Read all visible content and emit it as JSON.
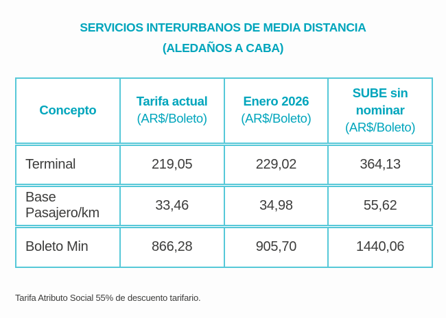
{
  "title": {
    "line1": "SERVICIOS INTERURBANOS DE MEDIA DISTANCIA",
    "line2": "(ALEDAÑOS A CABA)"
  },
  "colors": {
    "accent_teal": "#00a5bc",
    "border_teal": "#56c8d8",
    "text_dark": "#3c3c3b",
    "background": "#fdfdfd"
  },
  "table": {
    "columns": [
      {
        "label": "Concepto",
        "sublabel": ""
      },
      {
        "label": "Tarifa actual",
        "sublabel": "(AR$/Boleto)"
      },
      {
        "label": "Enero 2026",
        "sublabel": "(AR$/Boleto)"
      },
      {
        "label": "SUBE sin nominar",
        "sublabel": "(AR$/Boleto)"
      }
    ],
    "rows": [
      {
        "label": "Terminal",
        "values": [
          "219,05",
          "229,02",
          "364,13"
        ]
      },
      {
        "label": "Base Pasajero/km",
        "values": [
          "33,46",
          "34,98",
          "55,62"
        ]
      },
      {
        "label": "Boleto Min",
        "values": [
          "866,28",
          "905,70",
          "1440,06"
        ]
      }
    ]
  },
  "chart_data": {
    "type": "table",
    "title": "SERVICIOS INTERURBANOS DE MEDIA DISTANCIA (ALEDAÑOS A CABA)",
    "columns": [
      "Concepto",
      "Tarifa actual (AR$/Boleto)",
      "Enero 2026 (AR$/Boleto)",
      "SUBE sin nominar (AR$/Boleto)"
    ],
    "rows": [
      [
        "Terminal",
        219.05,
        229.02,
        364.13
      ],
      [
        "Base Pasajero/km",
        33.46,
        34.98,
        55.62
      ],
      [
        "Boleto Min",
        866.28,
        905.7,
        1440.06
      ]
    ],
    "note": "Tarifa Atributo Social 55% de descuento tarifario."
  },
  "footnote": "Tarifa Atributo Social 55% de descuento tarifario."
}
